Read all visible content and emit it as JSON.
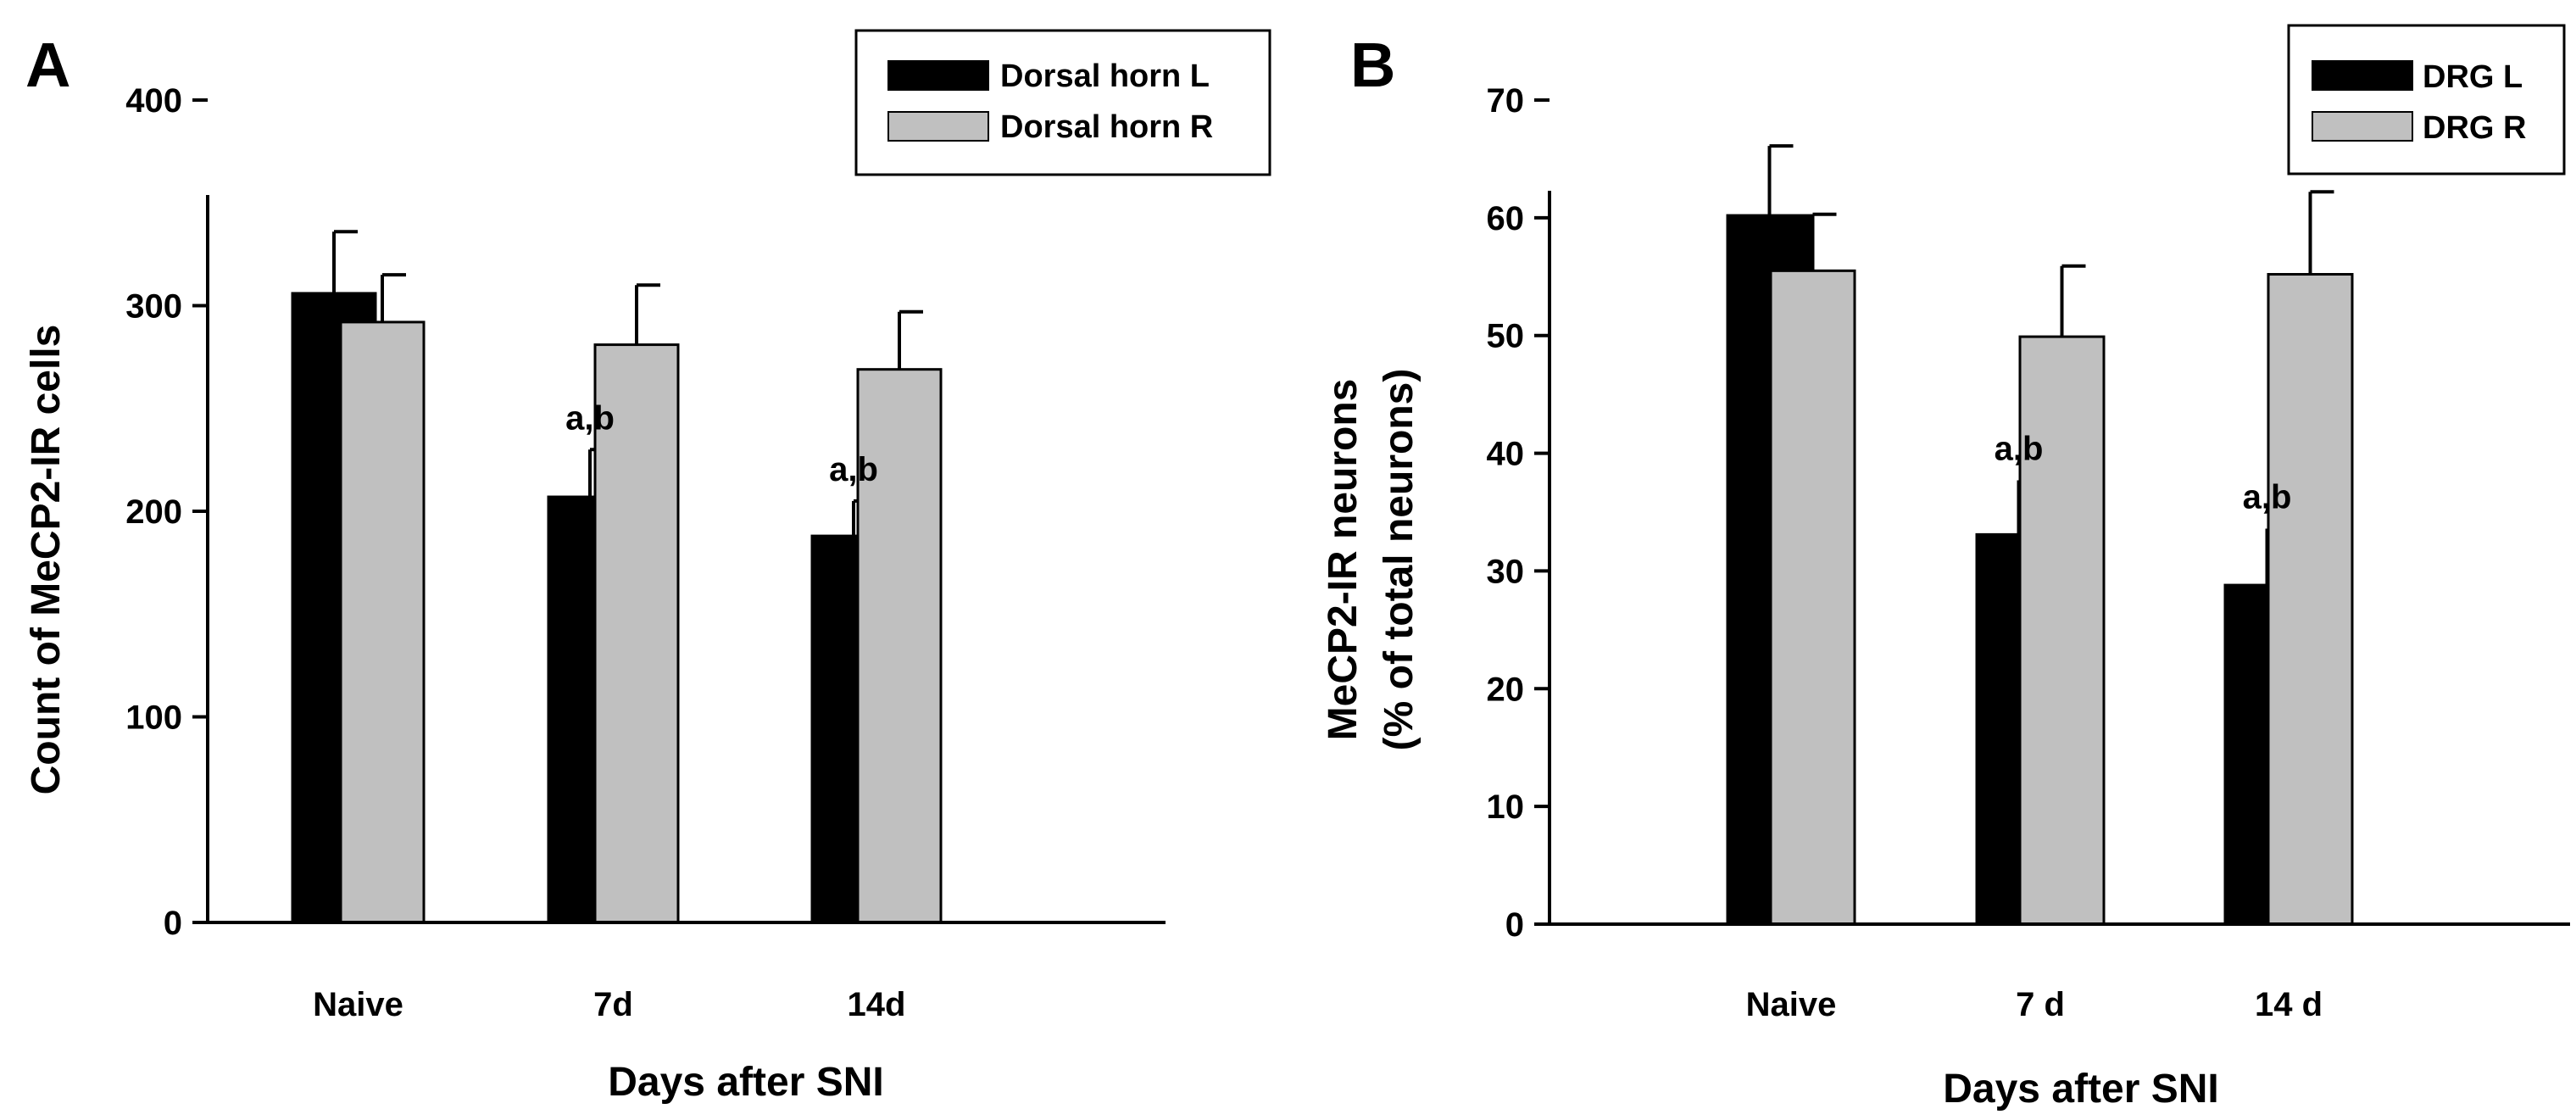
{
  "chart_data": [
    {
      "panel_label": "A",
      "type": "bar",
      "categories": [
        "Naive",
        "7d",
        "14d"
      ],
      "series": [
        {
          "name": "Dorsal horn L",
          "color": "#000000",
          "values": [
            306,
            207,
            188
          ],
          "errors": [
            30,
            23,
            17
          ]
        },
        {
          "name": "Dorsal horn R",
          "color": "#c0c0c0",
          "values": [
            292,
            281,
            269
          ],
          "errors": [
            23,
            29,
            28
          ]
        }
      ],
      "annotations": [
        {
          "category": "7d",
          "series": "Dorsal horn L",
          "text": "a,b"
        },
        {
          "category": "14d",
          "series": "Dorsal horn L",
          "text": "a,b"
        }
      ],
      "title": "",
      "xlabel": "Days after SNI",
      "ylabel": "Count of MeCP2-IR cells",
      "ylim": [
        0,
        400
      ],
      "yticks": [
        0,
        100,
        200,
        300,
        400
      ],
      "legend_position": "top-right"
    },
    {
      "panel_label": "B",
      "type": "bar",
      "categories": [
        "Naive",
        "7 d",
        "14 d"
      ],
      "series": [
        {
          "name": "DRG L",
          "color": "#000000",
          "values": [
            60.2,
            33.1,
            28.8
          ],
          "errors": [
            5.9,
            4.6,
            4.8
          ]
        },
        {
          "name": "DRG R",
          "color": "#c0c0c0",
          "values": [
            55.5,
            49.9,
            55.2
          ],
          "errors": [
            4.8,
            6.0,
            7.0
          ]
        }
      ],
      "annotations": [
        {
          "category": "7 d",
          "series": "DRG L",
          "text": "a,b"
        },
        {
          "category": "14 d",
          "series": "DRG L",
          "text": "a,b"
        }
      ],
      "title": "",
      "xlabel": "Days after SNI",
      "ylabel": "MeCP2-IR neurons",
      "ylabel_line2": "(% of total neurons)",
      "ylim": [
        0,
        70
      ],
      "yticks": [
        0,
        10,
        20,
        30,
        40,
        50,
        60,
        70
      ],
      "legend_position": "top-right"
    }
  ]
}
